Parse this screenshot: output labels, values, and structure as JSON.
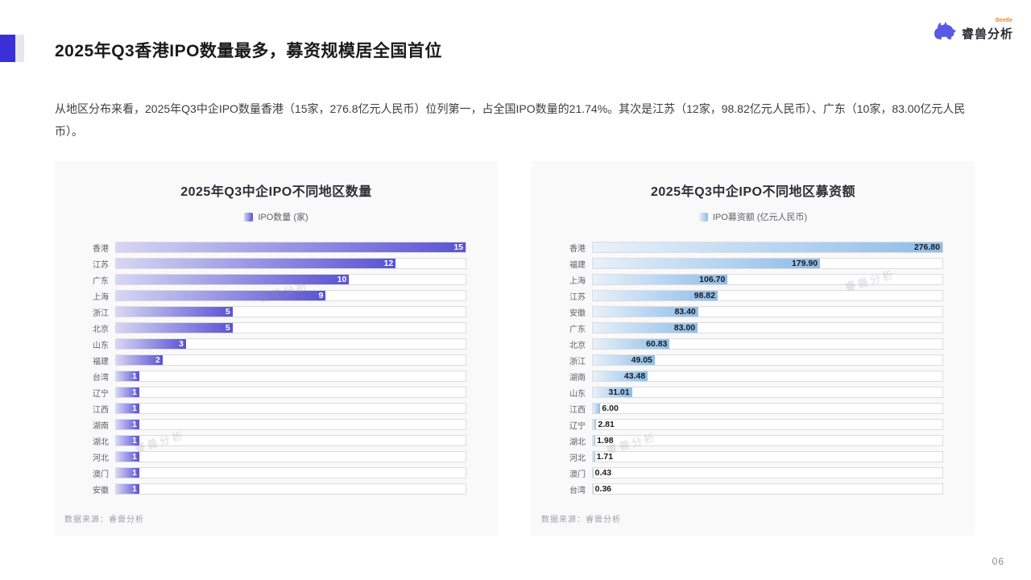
{
  "page": {
    "title": "2025年Q3香港IPO数量最多，募资规模居全国首位",
    "paragraph": "从地区分布来看，2025年Q3中企IPO数量香港（15家，276.8亿元人民币）位列第一，占全国IPO数量的21.74%。其次是江苏（12家，98.82亿元人民币）、广东（10家，83.00亿元人民币）。",
    "logo": {
      "brand": "睿兽分析",
      "superscript": "Beetle",
      "icon": "beast-logo-icon",
      "icon_color": "#575be3"
    },
    "watermark": "睿兽分析",
    "page_number": "06"
  },
  "chart_data": [
    {
      "type": "bar",
      "orientation": "horizontal",
      "title": "2025年Q3中企IPO不同地区数量",
      "legend": "IPO数量 (家)",
      "categories": [
        "香港",
        "江苏",
        "广东",
        "上海",
        "浙江",
        "北京",
        "山东",
        "福建",
        "台湾",
        "辽宁",
        "江西",
        "湖南",
        "湖北",
        "河北",
        "澳门",
        "安徽"
      ],
      "values": [
        15,
        12,
        10,
        9,
        5,
        5,
        3,
        2,
        1,
        1,
        1,
        1,
        1,
        1,
        1,
        1
      ],
      "value_labels": [
        "15",
        "12",
        "10",
        "9",
        "5",
        "5",
        "3",
        "2",
        "1",
        "1",
        "1",
        "1",
        "1",
        "1",
        "1",
        "1"
      ],
      "xlim": [
        0,
        15
      ],
      "grid": false,
      "legend_position": "top",
      "bar_color_start": "#d8d6f4",
      "bar_color_end": "#5953d6",
      "value_label_color": "#ffffff",
      "label_placement": "inside",
      "source": "数据来源：睿兽分析"
    },
    {
      "type": "bar",
      "orientation": "horizontal",
      "title": "2025年Q3中企IPO不同地区募资额",
      "legend": "IPO募资额 (亿元人民币)",
      "categories": [
        "香港",
        "福建",
        "上海",
        "江苏",
        "安徽",
        "广东",
        "北京",
        "浙江",
        "湖南",
        "山东",
        "江西",
        "辽宁",
        "湖北",
        "河北",
        "澳门",
        "台湾"
      ],
      "values": [
        276.8,
        179.9,
        106.7,
        98.82,
        83.4,
        83.0,
        60.83,
        49.05,
        43.48,
        31.01,
        6.0,
        2.81,
        1.98,
        1.71,
        0.43,
        0.36
      ],
      "value_labels": [
        "276.80",
        "179.90",
        "106.70",
        "98.82",
        "83.40",
        "83.00",
        "60.83",
        "49.05",
        "43.48",
        "31.01",
        "6.00",
        "2.81",
        "1.98",
        "1.71",
        "0.43",
        "0.36"
      ],
      "xlim": [
        0,
        276.8
      ],
      "grid": false,
      "legend_position": "top",
      "bar_color_start": "#e8f1fa",
      "bar_color_end": "#8dbde9",
      "value_label_color": "#1a1a1a",
      "label_placement": "auto",
      "source": "数据来源：睿兽分析"
    }
  ]
}
